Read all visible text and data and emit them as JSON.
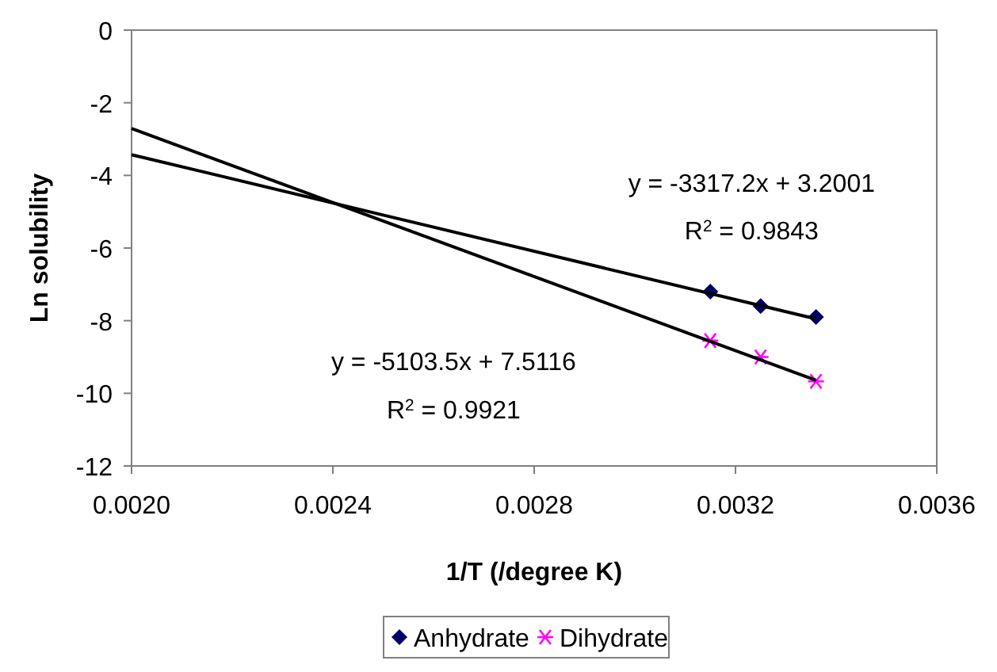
{
  "chart_data": {
    "type": "scatter",
    "xlabel": "1/T (/degree K)",
    "ylabel": "Ln solubility",
    "xlim": [
      0.002,
      0.0036
    ],
    "xticks": [
      {
        "value": 0.002,
        "label": "0.0020"
      },
      {
        "value": 0.0024,
        "label": "0.0024"
      },
      {
        "value": 0.0028,
        "label": "0.0028"
      },
      {
        "value": 0.0032,
        "label": "0.0032"
      },
      {
        "value": 0.0036,
        "label": "0.0036"
      }
    ],
    "ylim": [
      -12,
      0
    ],
    "yticks": [
      -12,
      -10,
      -8,
      -6,
      -4,
      -2,
      0
    ],
    "grid": false,
    "legend": "bottom",
    "series": [
      {
        "name": "Anhydrate",
        "color": "#000066",
        "marker": "diamond",
        "x": [
          0.00315,
          0.00325,
          0.00336
        ],
        "values": [
          -7.2,
          -7.6,
          -7.9
        ]
      },
      {
        "name": "Dihydrate",
        "color": "#ff00ff",
        "marker": "cross",
        "x": [
          0.00315,
          0.00325,
          0.00336
        ],
        "values": [
          -8.55,
          -9.0,
          -9.67
        ]
      },
      {
        "type": "line",
        "color": "#000000",
        "marker": "none",
        "x": [
          0.002,
          0.00336
        ],
        "values": [
          -3.43,
          -7.95
        ]
      },
      {
        "type": "line",
        "color": "#000000",
        "marker": "none",
        "x": [
          0.002,
          0.00336
        ],
        "values": [
          -2.71,
          -9.64
        ]
      }
    ],
    "annotations": [
      "y = -3317.2x + 3.2001",
      "R$^{2}$ = 0.9843",
      "y = -5103.5x + 7.5116",
      "R$^{2}$ = 0.9921"
    ]
  }
}
